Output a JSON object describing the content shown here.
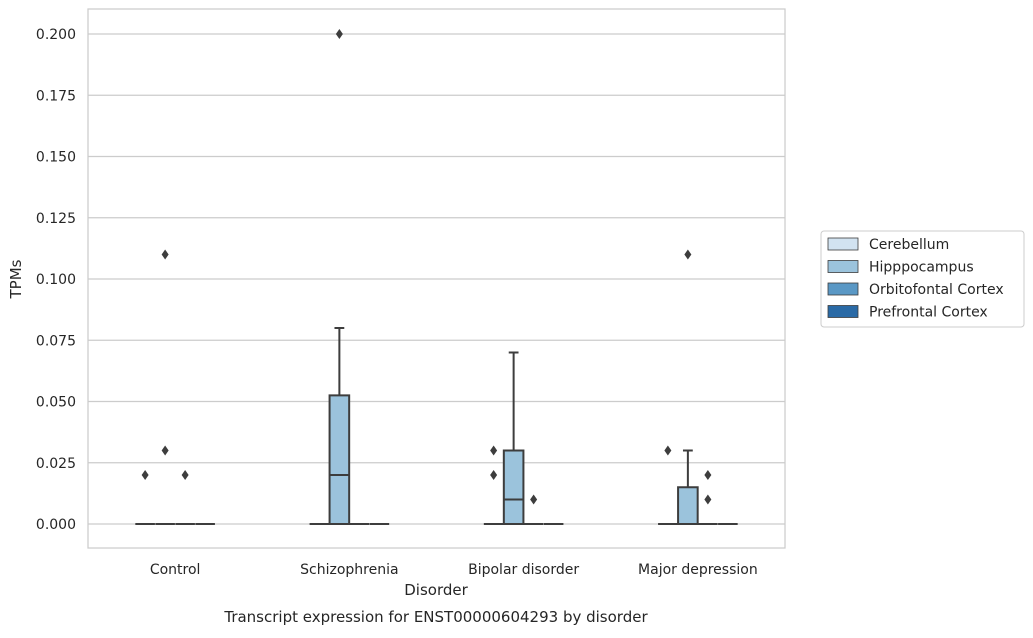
{
  "chart_data": {
    "type": "box",
    "xlabel": "Disorder",
    "ylabel": "TPMs",
    "caption": "Transcript expression for ENST00000604293 by disorder",
    "ylim": [
      -0.01,
      0.21
    ],
    "yticks": [
      "0.000",
      "0.025",
      "0.050",
      "0.075",
      "0.100",
      "0.125",
      "0.150",
      "0.175",
      "0.200"
    ],
    "grid": true,
    "legend_position": "right",
    "categories": [
      "Control",
      "Schizophrenia",
      "Bipolar disorder",
      "Major depression"
    ],
    "series": [
      {
        "name": "Cerebellum",
        "color": "#d2e3f1",
        "boxes": [
          {
            "q1": 0,
            "median": 0,
            "q3": 0,
            "whisker_low": 0,
            "whisker_high": 0,
            "outliers": [
              0.02
            ]
          },
          {
            "q1": 0,
            "median": 0,
            "q3": 0,
            "whisker_low": 0,
            "whisker_high": 0,
            "outliers": []
          },
          {
            "q1": 0,
            "median": 0,
            "q3": 0,
            "whisker_low": 0,
            "whisker_high": 0,
            "outliers": [
              0.02,
              0.03
            ]
          },
          {
            "q1": 0,
            "median": 0,
            "q3": 0,
            "whisker_low": 0,
            "whisker_high": 0,
            "outliers": [
              0.03
            ]
          }
        ]
      },
      {
        "name": "Hipppocampus",
        "color": "#9bc3dc",
        "boxes": [
          {
            "q1": 0,
            "median": 0,
            "q3": 0,
            "whisker_low": 0,
            "whisker_high": 0,
            "outliers": [
              0.03,
              0.11
            ]
          },
          {
            "q1": 0,
            "median": 0.02,
            "q3": 0.0525,
            "whisker_low": 0,
            "whisker_high": 0.08,
            "outliers": [
              0.2
            ]
          },
          {
            "q1": 0,
            "median": 0.01,
            "q3": 0.03,
            "whisker_low": 0,
            "whisker_high": 0.07,
            "outliers": []
          },
          {
            "q1": 0,
            "median": 0,
            "q3": 0.015,
            "whisker_low": 0,
            "whisker_high": 0.03,
            "outliers": [
              0.11
            ]
          }
        ]
      },
      {
        "name": "Orbitofontal Cortex",
        "color": "#5a98c5",
        "boxes": [
          {
            "q1": 0,
            "median": 0,
            "q3": 0,
            "whisker_low": 0,
            "whisker_high": 0,
            "outliers": [
              0.02
            ]
          },
          {
            "q1": 0,
            "median": 0,
            "q3": 0,
            "whisker_low": 0,
            "whisker_high": 0,
            "outliers": []
          },
          {
            "q1": 0,
            "median": 0,
            "q3": 0,
            "whisker_low": 0,
            "whisker_high": 0,
            "outliers": [
              0.01
            ]
          },
          {
            "q1": 0,
            "median": 0,
            "q3": 0,
            "whisker_low": 0,
            "whisker_high": 0,
            "outliers": [
              0.01,
              0.02
            ]
          }
        ]
      },
      {
        "name": "Prefrontal Cortex",
        "color": "#2a6aa6",
        "boxes": [
          {
            "q1": 0,
            "median": 0,
            "q3": 0,
            "whisker_low": 0,
            "whisker_high": 0,
            "outliers": []
          },
          {
            "q1": 0,
            "median": 0,
            "q3": 0,
            "whisker_low": 0,
            "whisker_high": 0,
            "outliers": []
          },
          {
            "q1": 0,
            "median": 0,
            "q3": 0,
            "whisker_low": 0,
            "whisker_high": 0,
            "outliers": []
          },
          {
            "q1": 0,
            "median": 0,
            "q3": 0,
            "whisker_low": 0,
            "whisker_high": 0,
            "outliers": []
          }
        ]
      }
    ]
  }
}
